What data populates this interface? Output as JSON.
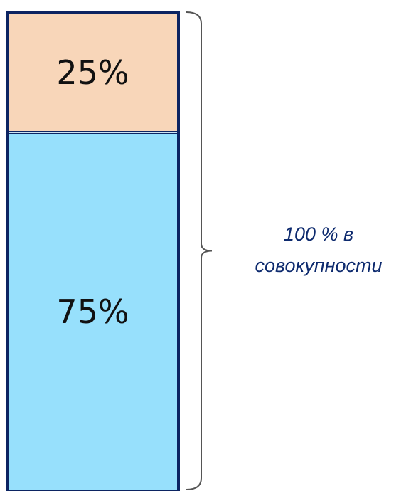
{
  "chart_data": {
    "type": "bar",
    "stacked": true,
    "orientation": "vertical",
    "categories": [
      ""
    ],
    "series": [
      {
        "values": [
          75
        ],
        "label": "75%",
        "color": "#97e0fc"
      },
      {
        "values": [
          25
        ],
        "label": "25%",
        "color": "#f8d6b9"
      }
    ],
    "ylim": [
      0,
      100
    ],
    "grid": false,
    "legend": "none",
    "bar_border_color": "#0c2462",
    "annotation": {
      "lines": [
        "100 % в",
        "совокупности"
      ],
      "color": "#0d2a6e",
      "brace_color": "#555555"
    }
  }
}
